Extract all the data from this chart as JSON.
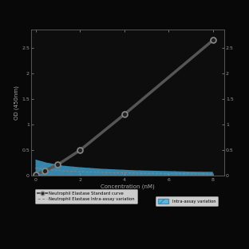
{
  "title": "",
  "xlabel": "Concentration (nM)",
  "ylabel_left": "OD (450nm)",
  "background_color": "#080808",
  "plot_bg_color": "#0d0d0d",
  "std_curve_x": [
    0,
    0.4,
    1.0,
    2.0,
    4.0,
    8.0
  ],
  "std_curve_y": [
    0.02,
    0.1,
    0.22,
    0.5,
    1.2,
    2.65
  ],
  "intra_x": [
    0.0,
    0.25,
    0.5,
    0.75,
    1.0,
    1.25,
    1.5,
    1.75,
    2.0,
    2.5,
    3.0,
    3.5,
    4.0,
    4.5,
    5.0,
    5.5,
    6.0,
    6.5,
    7.0,
    7.5,
    8.0
  ],
  "intra_upper": [
    0.32,
    0.29,
    0.26,
    0.24,
    0.22,
    0.2,
    0.19,
    0.18,
    0.17,
    0.155,
    0.14,
    0.13,
    0.12,
    0.11,
    0.105,
    0.1,
    0.095,
    0.09,
    0.085,
    0.082,
    0.08
  ],
  "intra_lower": [
    0.0,
    0.0,
    0.0,
    0.0,
    0.0,
    0.0,
    0.0,
    0.0,
    0.0,
    0.0,
    0.0,
    0.0,
    0.0,
    0.0,
    0.0,
    0.0,
    0.0,
    0.0,
    0.0,
    0.0,
    0.0
  ],
  "intra_mean": [
    0.16,
    0.145,
    0.13,
    0.12,
    0.11,
    0.1,
    0.095,
    0.09,
    0.085,
    0.078,
    0.07,
    0.065,
    0.06,
    0.055,
    0.052,
    0.05,
    0.047,
    0.045,
    0.042,
    0.04,
    0.038
  ],
  "hatch_color": "#2288bb",
  "hatch_face": "#4aaedd",
  "std_line_color": "#555555",
  "std_marker_color": "#222222",
  "std_marker_edge": "#888888",
  "intra_line_color": "#888888",
  "tick_color": "#999999",
  "label_color": "#aaaaaa",
  "yticks_left": [
    0,
    0.5,
    1.0,
    1.5,
    2.0,
    2.5
  ],
  "ytick_labels": [
    "0",
    "0.5",
    "1",
    "1.5",
    "2",
    "2.5"
  ],
  "xticks": [
    0,
    2,
    4,
    6,
    8
  ],
  "xtick_labels": [
    "0",
    "2",
    "4",
    "6",
    "8"
  ],
  "ylim": [
    0,
    2.85
  ],
  "xlim": [
    -0.2,
    8.5
  ],
  "figsize": [
    3.12,
    3.12
  ],
  "dpi": 100,
  "legend_std": "Neutrophil Elastase Standard curve",
  "legend_intra": "Neutrophil Elastase Intra-assay variation",
  "legend_shade": "Intra-assay variation"
}
